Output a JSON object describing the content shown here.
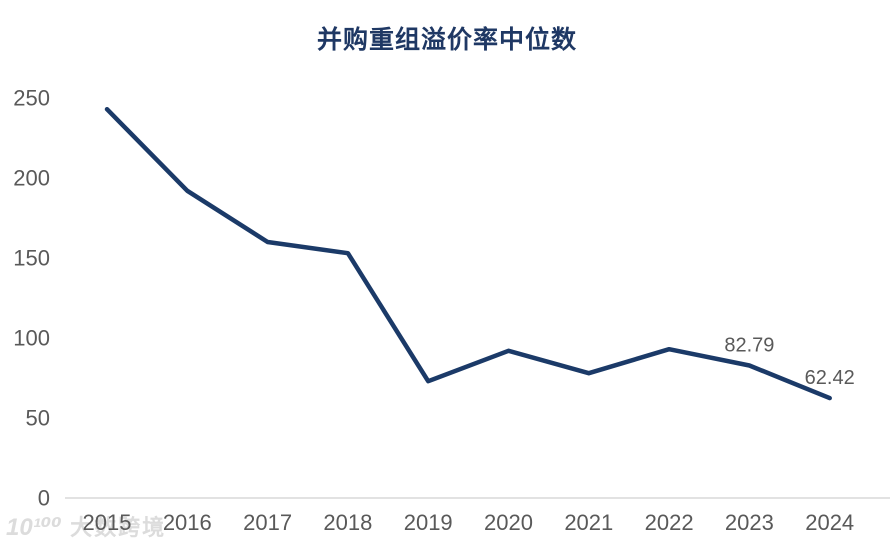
{
  "chart_data": {
    "type": "line",
    "title": "并购重组溢价率中位数",
    "categories": [
      "2015",
      "2016",
      "2017",
      "2018",
      "2019",
      "2020",
      "2021",
      "2022",
      "2023",
      "2024"
    ],
    "values": [
      243,
      192,
      160,
      153,
      73,
      92,
      78,
      93,
      82.79,
      62.42
    ],
    "point_labels": [
      null,
      null,
      null,
      null,
      null,
      null,
      null,
      null,
      "82.79",
      "62.42"
    ],
    "xlabel": "",
    "ylabel": "",
    "ylim": [
      0,
      250
    ],
    "yticks": [
      0,
      50,
      100,
      150,
      200,
      250
    ],
    "grid": false,
    "legend": "none",
    "colors": {
      "line": "#1b3a68",
      "title": "#1f3864",
      "axis_text": "#595959",
      "data_label": "#595959",
      "axis_line": "#d9d9d9"
    }
  },
  "watermark": {
    "logo": "10¹⁰⁰",
    "text": "大数跨境"
  }
}
